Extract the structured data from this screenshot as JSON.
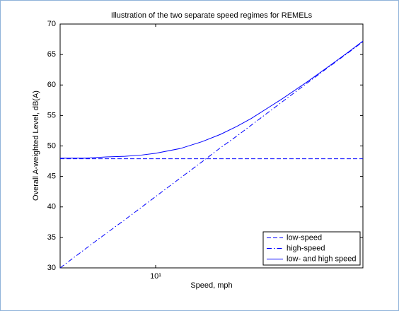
{
  "chart_data": {
    "type": "line",
    "title": "Illustration of the two separate speed regimes for REMELs",
    "x_label": "Speed, mph",
    "y_label": "Overall A-weighted Level, dB(A)",
    "x": [
      5,
      6,
      7,
      8,
      9,
      10,
      12,
      14,
      16,
      18,
      20,
      25,
      30,
      35,
      40,
      45
    ],
    "series": [
      {
        "name": "low-speed",
        "color": "#0000ff",
        "line_style": "dashed",
        "values": [
          47.9,
          47.9,
          47.9,
          47.9,
          47.9,
          47.9,
          47.9,
          47.9,
          47.9,
          47.9,
          47.9,
          47.9,
          47.9,
          47.9,
          47.9,
          47.9
        ]
      },
      {
        "name": "high-speed",
        "color": "#0000ff",
        "line_style": "dashdot",
        "values": [
          30.0,
          33.1,
          35.7,
          37.9,
          39.9,
          41.7,
          44.8,
          47.4,
          49.7,
          51.6,
          53.4,
          57.2,
          60.3,
          62.9,
          65.1,
          67.1
        ]
      },
      {
        "name": "low- and high speed",
        "color": "#0000ff",
        "line_style": "solid",
        "values": [
          48.0,
          48.0,
          48.2,
          48.3,
          48.5,
          48.8,
          49.6,
          50.7,
          51.9,
          53.2,
          54.5,
          57.7,
          60.5,
          63.0,
          65.2,
          67.2
        ]
      }
    ],
    "xlim": [
      5,
      45
    ],
    "xticks": [
      {
        "value": 10,
        "label": "10¹"
      }
    ],
    "x_scale": "log",
    "ylim": [
      30,
      70
    ],
    "yticks": [
      30,
      35,
      40,
      45,
      50,
      55,
      60,
      65,
      70
    ],
    "legend": "lower right"
  }
}
